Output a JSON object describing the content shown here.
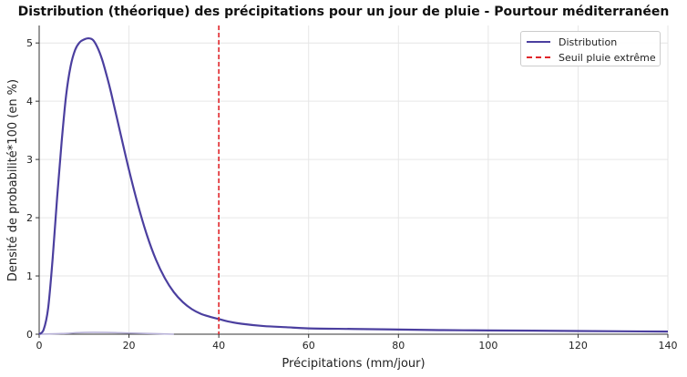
{
  "chart_data": {
    "type": "line",
    "title": "Distribution (théorique) des précipitations pour un jour de pluie - Pourtour méditerranéen",
    "xlabel": "Précipitations (mm/jour)",
    "ylabel": "Densité de probabilité*100 (en %)",
    "xlim": [
      0,
      140
    ],
    "ylim": [
      0,
      5.3
    ],
    "x_ticks": [
      0,
      20,
      40,
      60,
      80,
      100,
      120,
      140
    ],
    "y_ticks": [
      0,
      1,
      2,
      3,
      4,
      5
    ],
    "grid": true,
    "legend_position": "top-right",
    "series": [
      {
        "name": "Distribution",
        "color": "#4b3f9f",
        "style": "solid",
        "x": [
          0,
          1,
          2,
          3,
          4,
          5,
          6,
          7,
          8,
          9,
          10,
          11,
          12,
          13,
          14,
          15,
          16,
          18,
          20,
          22,
          24,
          26,
          28,
          30,
          32,
          34,
          36,
          38,
          40,
          42,
          45,
          50,
          55,
          60,
          70,
          80,
          90,
          100,
          110,
          120,
          130,
          140
        ],
        "y": [
          0,
          0.08,
          0.45,
          1.3,
          2.35,
          3.3,
          4.1,
          4.6,
          4.88,
          5.01,
          5.06,
          5.08,
          5.05,
          4.92,
          4.72,
          4.45,
          4.15,
          3.48,
          2.82,
          2.22,
          1.7,
          1.28,
          0.96,
          0.72,
          0.55,
          0.43,
          0.35,
          0.3,
          0.26,
          0.22,
          0.18,
          0.14,
          0.12,
          0.1,
          0.09,
          0.08,
          0.07,
          0.065,
          0.06,
          0.055,
          0.05,
          0.045
        ]
      },
      {
        "name": "",
        "color": "#b8b2d8",
        "style": "solid",
        "x": [
          0,
          5,
          10,
          15,
          20,
          25,
          30
        ],
        "y": [
          0,
          0.01,
          0.03,
          0.03,
          0.02,
          0.01,
          0.0
        ]
      }
    ],
    "threshold": {
      "name": "Seuil pluie extrême",
      "x": 40,
      "color": "#e0252a",
      "style": "dashed"
    }
  }
}
